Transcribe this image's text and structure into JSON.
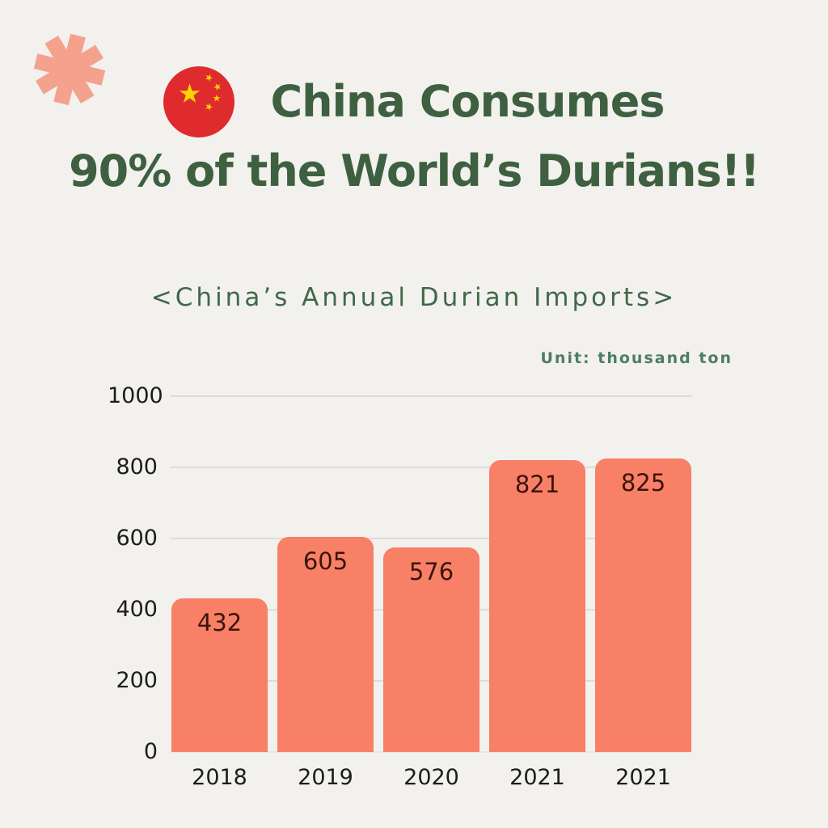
{
  "header": {
    "title_line1": "China Consumes",
    "title_line2": "90% of the World’s Durians!!"
  },
  "chart_data": {
    "type": "bar",
    "title": "<China’s Annual Durian Imports>",
    "unit_label": "Unit: thousand ton",
    "categories": [
      "2018",
      "2019",
      "2020",
      "2021",
      "2021"
    ],
    "values": [
      432,
      605,
      576,
      821,
      825
    ],
    "xlabel": "",
    "ylabel": "",
    "ylim": [
      0,
      1000
    ],
    "yticks": [
      0,
      200,
      400,
      600,
      800,
      1000
    ],
    "grid": true,
    "legend": "none"
  },
  "icons": {
    "flag": "china-flag-icon",
    "asterisk": "asterisk-decoration-icon"
  },
  "colors": {
    "background": "#f2f1ee",
    "title_green": "#3e6040",
    "subtitle_green": "#3f6847",
    "unit_green": "#4e7d62",
    "bar_salmon": "#f88066",
    "bar_label": "#3a150b",
    "axis_text": "#1c1c1a",
    "grid_line": "#dddcd9",
    "baseline": "#e6e5e2",
    "asterisk_pink": "#f4a28e",
    "flag_red": "#df2b2e",
    "star_yellow": "#fcd403"
  }
}
